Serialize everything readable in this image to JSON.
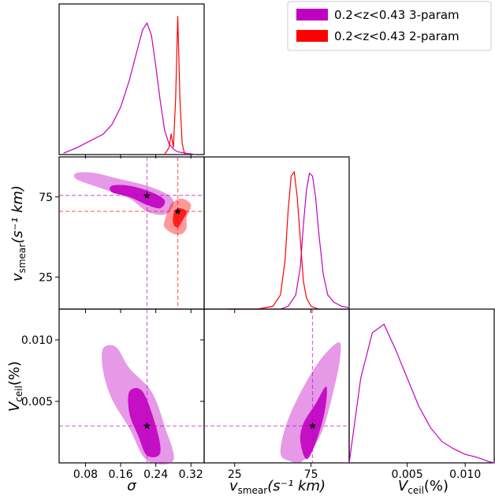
{
  "chart_data": {
    "type": "corner",
    "title": "",
    "legend": [
      {
        "label": "0.2<z<0.43 3-param",
        "color": "#c000c0"
      },
      {
        "label": "0.2<z<0.43 2-param",
        "color": "#ff0000"
      }
    ],
    "legend_position": "top-right",
    "parameters": [
      {
        "symbol": "σ",
        "range": [
          0.02,
          0.35
        ],
        "ticks": [
          "0.08",
          "0.16",
          "0.24",
          "0.32"
        ]
      },
      {
        "symbol": "v_smear",
        "unit": "s⁻¹ km",
        "range": [
          5,
          100
        ],
        "ticks": [
          "25",
          "75"
        ]
      },
      {
        "symbol": "V_ceil",
        "unit": "%",
        "range": [
          0.0,
          0.0125
        ],
        "ticks": [
          "0.005",
          "0.010"
        ]
      }
    ],
    "axis_labels": {
      "sigma": "σ",
      "vsmear_main": "v",
      "vsmear_sub": "smear",
      "vsmear_unit": "(s⁻¹ km)",
      "vceil_main": "V",
      "vceil_sub": "ceil",
      "vceil_unit": "(%)"
    },
    "best_fit": {
      "3-param": {
        "sigma": 0.22,
        "v_smear": 76,
        "V_ceil": 0.003
      },
      "2-param": {
        "sigma": 0.29,
        "v_smear": 66
      }
    },
    "marginals": {
      "sigma": {
        "3-param": {
          "x": [
            0.03,
            0.06,
            0.09,
            0.12,
            0.14,
            0.16,
            0.18,
            0.2,
            0.21,
            0.22,
            0.23,
            0.24,
            0.25,
            0.26,
            0.27,
            0.28,
            0.29,
            0.31,
            0.33
          ],
          "y": [
            0.01,
            0.05,
            0.1,
            0.15,
            0.22,
            0.35,
            0.55,
            0.8,
            0.92,
            0.97,
            0.88,
            0.65,
            0.4,
            0.18,
            0.08,
            0.04,
            0.02,
            0.01,
            0.0
          ]
        },
        "2-param": {
          "x": [
            0.26,
            0.27,
            0.275,
            0.28,
            0.285,
            0.29,
            0.295,
            0.3,
            0.305,
            0.31
          ],
          "y": [
            0.0,
            0.05,
            0.15,
            0.05,
            0.4,
            1.0,
            0.4,
            0.08,
            0.01,
            0.0
          ]
        }
      },
      "v_smear": {
        "3-param": {
          "x": [
            55,
            60,
            65,
            68,
            70,
            72,
            74,
            76,
            78,
            80,
            83,
            86,
            90,
            95,
            100
          ],
          "y": [
            0.0,
            0.02,
            0.1,
            0.3,
            0.6,
            0.85,
            0.97,
            0.95,
            0.8,
            0.55,
            0.25,
            0.1,
            0.05,
            0.02,
            0.01
          ]
        },
        "2-param": {
          "x": [
            20,
            30,
            40,
            50,
            55,
            58,
            60,
            62,
            64,
            66,
            68,
            70,
            72,
            75,
            80
          ],
          "y": [
            0.0,
            0.0,
            0.0,
            0.02,
            0.1,
            0.35,
            0.7,
            0.95,
            0.98,
            0.8,
            0.5,
            0.2,
            0.08,
            0.02,
            0.0
          ]
        }
      },
      "V_ceil": {
        "3-param": {
          "x": [
            0.0,
            0.001,
            0.002,
            0.003,
            0.004,
            0.005,
            0.006,
            0.007,
            0.008,
            0.009,
            0.01,
            0.011,
            0.012,
            0.0125
          ],
          "y": [
            0.0,
            0.6,
            0.92,
            0.98,
            0.8,
            0.6,
            0.4,
            0.25,
            0.15,
            0.1,
            0.06,
            0.04,
            0.01,
            0.0
          ]
        }
      }
    },
    "contours": {
      "sigma_vsmear": {
        "3-param": {
          "outer": [
            [
              0.06,
              90
            ],
            [
              0.1,
              90
            ],
            [
              0.16,
              86
            ],
            [
              0.22,
              82
            ],
            [
              0.27,
              76
            ],
            [
              0.28,
              70
            ],
            [
              0.26,
              64
            ],
            [
              0.22,
              66
            ],
            [
              0.18,
              74
            ],
            [
              0.12,
              80
            ],
            [
              0.06,
              86
            ]
          ],
          "inner": [
            [
              0.14,
              82
            ],
            [
              0.18,
              82
            ],
            [
              0.23,
              78
            ],
            [
              0.26,
              73
            ],
            [
              0.25,
              68
            ],
            [
              0.22,
              70
            ],
            [
              0.18,
              75
            ],
            [
              0.14,
              78
            ]
          ]
        },
        "2-param": {
          "outer": [
            [
              0.26,
              60
            ],
            [
              0.27,
              68
            ],
            [
              0.28,
              72
            ],
            [
              0.3,
              74
            ],
            [
              0.32,
              70
            ],
            [
              0.31,
              62
            ],
            [
              0.31,
              56
            ],
            [
              0.3,
              52
            ],
            [
              0.28,
              52
            ],
            [
              0.26,
              56
            ]
          ],
          "inner": [
            [
              0.28,
              58
            ],
            [
              0.28,
              64
            ],
            [
              0.29,
              68
            ],
            [
              0.31,
              66
            ],
            [
              0.3,
              60
            ],
            [
              0.29,
              56
            ]
          ]
        }
      },
      "sigma_vceil": {
        "3-param": {
          "outer": [
            [
              0.12,
              0.0093
            ],
            [
              0.15,
              0.0094
            ],
            [
              0.18,
              0.0077
            ],
            [
              0.23,
              0.0058
            ],
            [
              0.26,
              0.003
            ],
            [
              0.28,
              0.0002
            ],
            [
              0.22,
              0.0002
            ],
            [
              0.18,
              0.0028
            ],
            [
              0.14,
              0.0052
            ],
            [
              0.12,
              0.0075
            ]
          ],
          "inner": [
            [
              0.18,
              0.0058
            ],
            [
              0.21,
              0.0058
            ],
            [
              0.24,
              0.003
            ],
            [
              0.25,
              0.0008
            ],
            [
              0.22,
              0.0006
            ],
            [
              0.2,
              0.0022
            ],
            [
              0.18,
              0.004
            ]
          ]
        }
      },
      "vsmear_vceil": {
        "3-param": {
          "outer": [
            [
              55,
              0.0008
            ],
            [
              58,
              0.0028
            ],
            [
              66,
              0.0052
            ],
            [
              80,
              0.0082
            ],
            [
              93,
              0.0098
            ],
            [
              94,
              0.0085
            ],
            [
              90,
              0.006
            ],
            [
              82,
              0.0025
            ],
            [
              70,
              0.0002
            ],
            [
              60,
              0.0002
            ]
          ],
          "inner": [
            [
              68,
              0.0018
            ],
            [
              70,
              0.0032
            ],
            [
              78,
              0.0048
            ],
            [
              85,
              0.0062
            ],
            [
              84,
              0.0042
            ],
            [
              78,
              0.0016
            ],
            [
              72,
              0.0003
            ]
          ]
        }
      }
    }
  }
}
